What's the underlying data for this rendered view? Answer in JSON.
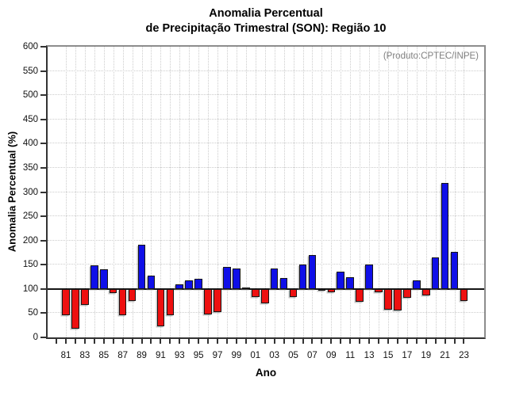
{
  "page": {
    "background": "#ffffff"
  },
  "chart_data": {
    "type": "bar",
    "title_line1": "Anomalia Percentual",
    "title_line2": "de Precipitação Trimestral (SON): Região 10",
    "annotation": "(Produto:CPTEC/INPE)",
    "xlabel": "Ano",
    "ylabel": "Anomalia Percentual (%)",
    "ylim": [
      0,
      600
    ],
    "ytick_interval": 50,
    "baseline": 100,
    "grid": true,
    "legend_position": "none",
    "colors": {
      "above_baseline": "#0f0fe8",
      "below_baseline": "#ee1010",
      "bar_outline": "#161616",
      "annotation_text": "#808080",
      "axis": "#333333",
      "gridline": "#cccccc"
    },
    "categories": [
      "81",
      "82",
      "83",
      "84",
      "85",
      "86",
      "87",
      "88",
      "89",
      "90",
      "91",
      "92",
      "93",
      "94",
      "95",
      "96",
      "97",
      "98",
      "99",
      "00",
      "01",
      "02",
      "03",
      "04",
      "05",
      "06",
      "07",
      "08",
      "09",
      "10",
      "11",
      "12",
      "13",
      "14",
      "15",
      "16",
      "17",
      "18",
      "19",
      "20",
      "21",
      "22",
      "23"
    ],
    "values": [
      45,
      18,
      67,
      148,
      140,
      91,
      45,
      76,
      191,
      127,
      23,
      46,
      110,
      117,
      121,
      47,
      52,
      145,
      143,
      100,
      84,
      70,
      142,
      123,
      84,
      150,
      170,
      97,
      94,
      136,
      125,
      73,
      150,
      94,
      58,
      55,
      82,
      117,
      87,
      165,
      319,
      176,
      76
    ],
    "x_tick_labels": [
      "81",
      "83",
      "85",
      "87",
      "89",
      "91",
      "93",
      "95",
      "97",
      "99",
      "01",
      "03",
      "05",
      "07",
      "09",
      "11",
      "13",
      "15",
      "17",
      "19",
      "21",
      "23"
    ],
    "y_tick_labels": [
      "0",
      "50",
      "100",
      "150",
      "200",
      "250",
      "300",
      "350",
      "400",
      "450",
      "500",
      "550",
      "600"
    ]
  }
}
